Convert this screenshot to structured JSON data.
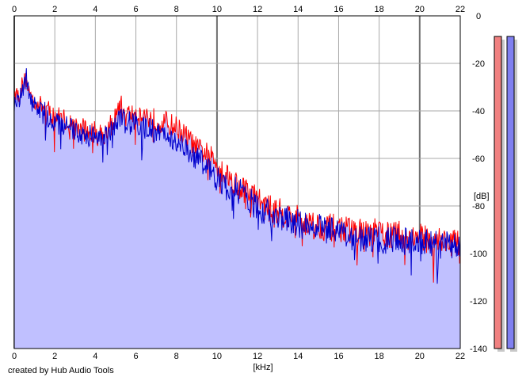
{
  "chart_data": {
    "type": "line",
    "xlabel": "[kHz]",
    "ylabel": "[dB]",
    "xlim": [
      0,
      22
    ],
    "ylim": [
      -140,
      0
    ],
    "x_ticks": [
      "0",
      "2",
      "4",
      "6",
      "8",
      "10",
      "12",
      "14",
      "16",
      "18",
      "20",
      "22"
    ],
    "y_ticks": [
      "0",
      "-20",
      "-40",
      "-60",
      "-80",
      "-100",
      "-120",
      "-140"
    ],
    "grid": true,
    "fill_under": true,
    "series": [
      {
        "color": "#ff0000",
        "x": [
          0,
          0.2,
          0.4,
          0.6,
          0.8,
          1.0,
          1.5,
          2.0,
          2.5,
          3.0,
          3.5,
          4.0,
          4.5,
          5.0,
          5.2,
          5.5,
          6.0,
          6.5,
          7.0,
          7.5,
          8.0,
          8.5,
          9.0,
          9.5,
          10.0,
          10.5,
          11.0,
          11.5,
          12.0,
          12.5,
          13.0,
          13.5,
          14.0,
          14.5,
          15.0,
          15.5,
          16.0,
          16.5,
          17.0,
          17.5,
          18.0,
          18.5,
          19.0,
          19.5,
          20.0,
          20.5,
          21.0,
          21.5,
          22.0
        ],
        "y": [
          -30,
          -33,
          -28,
          -26,
          -33,
          -35,
          -38,
          -41,
          -43,
          -46,
          -47,
          -48,
          -48,
          -42,
          -36,
          -41,
          -40,
          -41,
          -43,
          -44,
          -46,
          -50,
          -55,
          -57,
          -61,
          -66,
          -70,
          -73,
          -76,
          -80,
          -81,
          -83,
          -84,
          -86,
          -87,
          -88,
          -88,
          -89,
          -90,
          -90,
          -90,
          -91,
          -91,
          -92,
          -92,
          -93,
          -93,
          -94,
          -95
        ]
      },
      {
        "color": "#0000cc",
        "x": [
          0,
          0.2,
          0.4,
          0.6,
          0.8,
          1.0,
          1.5,
          2.0,
          2.5,
          3.0,
          3.5,
          4.0,
          4.5,
          5.0,
          5.2,
          5.5,
          6.0,
          6.5,
          7.0,
          7.5,
          8.0,
          8.5,
          9.0,
          9.5,
          10.0,
          10.5,
          11.0,
          11.5,
          12.0,
          12.5,
          13.0,
          13.5,
          14.0,
          14.5,
          15.0,
          15.5,
          16.0,
          16.5,
          17.0,
          17.5,
          18.0,
          18.5,
          19.0,
          19.5,
          20.0,
          20.5,
          21.0,
          21.5,
          22.0
        ],
        "y": [
          -32,
          -35,
          -30,
          -25,
          -35,
          -37,
          -40,
          -44,
          -45,
          -48,
          -49,
          -50,
          -48,
          -45,
          -42,
          -44,
          -44,
          -46,
          -48,
          -50,
          -52,
          -55,
          -58,
          -63,
          -68,
          -72,
          -72,
          -76,
          -80,
          -82,
          -83,
          -84,
          -86,
          -88,
          -88,
          -89,
          -91,
          -92,
          -92,
          -92,
          -93,
          -93,
          -93,
          -94,
          -94,
          -94,
          -95,
          -95,
          -96
        ]
      }
    ],
    "level_meters": [
      {
        "color": "#f08080",
        "value_db": -2
      },
      {
        "color": "#8080f0",
        "value_db": -2
      }
    ]
  },
  "credit": "created by Hub Audio Tools"
}
